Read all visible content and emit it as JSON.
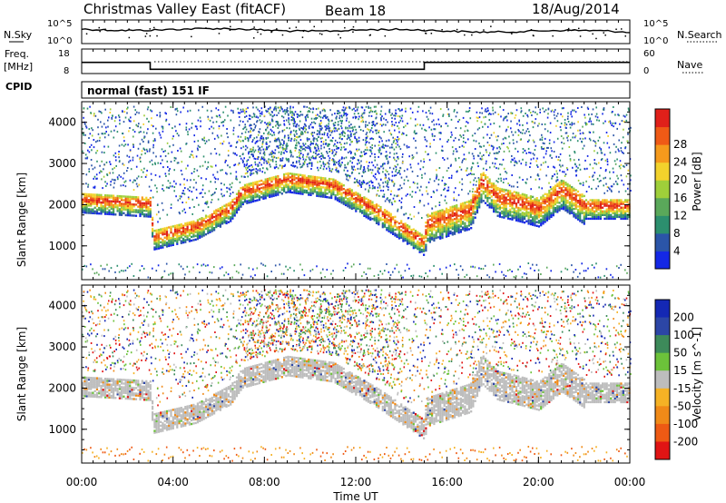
{
  "header": {
    "title": "Christmas Valley East (fitACF)",
    "beam": "Beam 18",
    "date": "18/Aug/2014"
  },
  "noise_panel": {
    "left_label": "N.Sky",
    "left_ticks": [
      "10^5",
      "10^0"
    ],
    "right_label": "N.Search",
    "right_ticks": [
      "10^5",
      "10^0"
    ]
  },
  "freq_panel": {
    "left_label_line1": "Freq.",
    "left_label_line2": "[MHz]",
    "left_ticks": [
      "18",
      "8"
    ],
    "right_label": "Nave",
    "right_ticks": [
      "60",
      "0"
    ],
    "cpid_label": "CPID",
    "cpid_value": "normal (fast) 151 IF",
    "freq_segments": [
      {
        "t0": 0.0,
        "t1": 3.0,
        "mhz": 14.5
      },
      {
        "t0": 3.0,
        "t1": 15.0,
        "mhz": 10.5
      },
      {
        "t0": 15.0,
        "t1": 24.0,
        "mhz": 14.5
      }
    ]
  },
  "x_axis": {
    "label": "Time UT",
    "ticks": [
      "00:00",
      "04:00",
      "08:00",
      "12:00",
      "16:00",
      "20:00",
      "00:00"
    ],
    "range_hours": [
      0,
      24
    ]
  },
  "chart_data": [
    {
      "type": "heatmap",
      "panel": "power",
      "ylabel": "Slant Range [km]",
      "yticks": [
        "1000",
        "2000",
        "3000",
        "4000"
      ],
      "ylim": [
        180,
        4500
      ],
      "colorbar": {
        "label": "Power [dB]",
        "ticks": [
          "4",
          "8",
          "12",
          "16",
          "20",
          "24",
          "28"
        ],
        "colors": [
          "#1428e6",
          "#2b55a8",
          "#2c8f6e",
          "#5aa85a",
          "#9fcf3a",
          "#f2d22c",
          "#f59a1c",
          "#ef5a16",
          "#e0201a"
        ]
      },
      "ridge_km": [
        [
          0,
          2150
        ],
        [
          3,
          2050
        ],
        [
          3.1,
          1250
        ],
        [
          5,
          1500
        ],
        [
          6.5,
          1950
        ],
        [
          7,
          2350
        ],
        [
          9,
          2650
        ],
        [
          11,
          2500
        ],
        [
          13,
          1850
        ],
        [
          15,
          1100
        ],
        [
          15.05,
          1550
        ],
        [
          17,
          1900
        ],
        [
          17.5,
          2600
        ],
        [
          18.2,
          2200
        ],
        [
          19,
          2100
        ],
        [
          20,
          1950
        ],
        [
          21,
          2400
        ],
        [
          22,
          2000
        ],
        [
          24,
          2000
        ]
      ]
    },
    {
      "type": "heatmap",
      "panel": "velocity",
      "ylabel": "Slant Range [km]",
      "yticks": [
        "1000",
        "2000",
        "3000",
        "4000"
      ],
      "ylim": [
        180,
        4500
      ],
      "colorbar": {
        "label": "Velocity [m s^-1]",
        "ticks": [
          "200",
          "100",
          "50",
          "15",
          "-15",
          "-50",
          "-100",
          "-200"
        ],
        "colors": [
          "#1428b4",
          "#2c46a6",
          "#3d8a5a",
          "#6cc23a",
          "#bdbdbd",
          "#f5b225",
          "#f08a18",
          "#ee5a14",
          "#e01414"
        ]
      }
    }
  ]
}
